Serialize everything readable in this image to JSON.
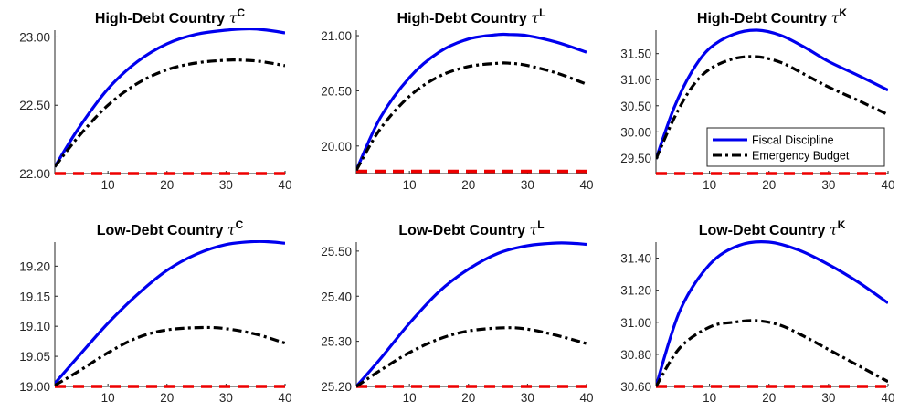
{
  "colors": {
    "fiscal_discipline": "#0000ee",
    "emergency_budget": "#000000",
    "reference": "#ee0000",
    "axis": "#262626"
  },
  "legend": {
    "placement": "inside lower-right of top-right panel",
    "entries": [
      "Fiscal Discipline",
      "Emergency Budget"
    ]
  },
  "chart_data": [
    {
      "type": "line",
      "title": "High-Debt Country",
      "title_symbol": "τ",
      "title_superscript": "C",
      "xlim": [
        1,
        40
      ],
      "ylim": [
        22.0,
        23.05
      ],
      "xticks": [
        10,
        20,
        30,
        40
      ],
      "yticks": [
        22.0,
        22.5,
        23.0
      ],
      "ytick_labels": [
        "22.00",
        "22.50",
        "23.00"
      ],
      "series": [
        {
          "name": "Fiscal Discipline",
          "style": "solid",
          "color": "#0000ee",
          "x": [
            1,
            5,
            10,
            15,
            20,
            25,
            30,
            34,
            37,
            40
          ],
          "y": [
            22.05,
            22.33,
            22.62,
            22.82,
            22.95,
            23.02,
            23.05,
            23.06,
            23.05,
            23.03
          ]
        },
        {
          "name": "Emergency Budget",
          "style": "dashdot",
          "color": "#000000",
          "x": [
            1,
            5,
            10,
            15,
            20,
            25,
            30,
            33,
            36,
            40
          ],
          "y": [
            22.05,
            22.27,
            22.5,
            22.66,
            22.76,
            22.81,
            22.83,
            22.83,
            22.82,
            22.79
          ]
        },
        {
          "name": "Reference",
          "style": "dashed",
          "color": "#ee0000",
          "x": [
            1,
            40
          ],
          "y": [
            22.0,
            22.0
          ]
        }
      ]
    },
    {
      "type": "line",
      "title": "High-Debt Country",
      "title_symbol": "τ",
      "title_superscript": "L",
      "xlim": [
        1,
        40
      ],
      "ylim": [
        19.75,
        21.05
      ],
      "xticks": [
        10,
        20,
        30,
        40
      ],
      "yticks": [
        20.0,
        20.5,
        21.0
      ],
      "ytick_labels": [
        "20.00",
        "20.50",
        "21.00"
      ],
      "series": [
        {
          "name": "Fiscal Discipline",
          "style": "solid",
          "color": "#0000ee",
          "x": [
            1,
            5,
            10,
            15,
            20,
            25,
            27,
            30,
            35,
            40
          ],
          "y": [
            19.78,
            20.25,
            20.62,
            20.85,
            20.97,
            21.01,
            21.01,
            21.0,
            20.94,
            20.85
          ]
        },
        {
          "name": "Emergency Budget",
          "style": "dashdot",
          "color": "#000000",
          "x": [
            1,
            5,
            10,
            15,
            20,
            25,
            27,
            30,
            35,
            40
          ],
          "y": [
            19.78,
            20.15,
            20.45,
            20.63,
            20.72,
            20.75,
            20.75,
            20.73,
            20.66,
            20.56
          ]
        },
        {
          "name": "Reference",
          "style": "dashed",
          "color": "#ee0000",
          "x": [
            1,
            40
          ],
          "y": [
            19.77,
            19.77
          ]
        }
      ]
    },
    {
      "type": "line",
      "title": "High-Debt Country",
      "title_symbol": "τ",
      "title_superscript": "K",
      "xlim": [
        1,
        40
      ],
      "ylim": [
        29.2,
        31.95
      ],
      "xticks": [
        10,
        20,
        30,
        40
      ],
      "yticks": [
        29.5,
        30.0,
        30.5,
        31.0,
        31.5
      ],
      "ytick_labels": [
        "29.50",
        "30.00",
        "30.50",
        "31.00",
        "31.50"
      ],
      "series": [
        {
          "name": "Fiscal Discipline",
          "style": "solid",
          "color": "#0000ee",
          "x": [
            1,
            4,
            7,
            10,
            14,
            18,
            22,
            26,
            30,
            35,
            40
          ],
          "y": [
            29.48,
            30.45,
            31.15,
            31.6,
            31.87,
            31.95,
            31.85,
            31.62,
            31.35,
            31.08,
            30.8
          ]
        },
        {
          "name": "Emergency Budget",
          "style": "dashdot",
          "color": "#000000",
          "x": [
            1,
            4,
            7,
            10,
            14,
            18,
            22,
            26,
            30,
            35,
            40
          ],
          "y": [
            29.48,
            30.25,
            30.85,
            31.2,
            31.4,
            31.44,
            31.33,
            31.1,
            30.86,
            30.6,
            30.33
          ]
        },
        {
          "name": "Reference",
          "style": "dashed",
          "color": "#ee0000",
          "x": [
            1,
            40
          ],
          "y": [
            29.2,
            29.2
          ]
        }
      ]
    },
    {
      "type": "line",
      "title": "Low-Debt Country",
      "title_symbol": "τ",
      "title_superscript": "C",
      "xlim": [
        1,
        40
      ],
      "ylim": [
        19.0,
        19.24
      ],
      "xticks": [
        10,
        20,
        30,
        40
      ],
      "yticks": [
        19.0,
        19.05,
        19.1,
        19.15,
        19.2
      ],
      "ytick_labels": [
        "19.00",
        "19.05",
        "19.10",
        "19.15",
        "19.20"
      ],
      "series": [
        {
          "name": "Fiscal Discipline",
          "style": "solid",
          "color": "#0000ee",
          "x": [
            1,
            5,
            10,
            15,
            20,
            25,
            30,
            35,
            38,
            40
          ],
          "y": [
            19.005,
            19.05,
            19.105,
            19.153,
            19.193,
            19.22,
            19.236,
            19.241,
            19.24,
            19.238
          ]
        },
        {
          "name": "Emergency Budget",
          "style": "dashdot",
          "color": "#000000",
          "x": [
            1,
            5,
            10,
            15,
            20,
            26,
            30,
            35,
            40
          ],
          "y": [
            19.002,
            19.025,
            19.056,
            19.081,
            19.094,
            19.098,
            19.096,
            19.087,
            19.072
          ]
        },
        {
          "name": "Reference",
          "style": "dashed",
          "color": "#ee0000",
          "x": [
            1,
            40
          ],
          "y": [
            19.0,
            19.0
          ]
        }
      ]
    },
    {
      "type": "line",
      "title": "Low-Debt Country",
      "title_symbol": "τ",
      "title_superscript": "L",
      "xlim": [
        1,
        40
      ],
      "ylim": [
        25.2,
        25.52
      ],
      "xticks": [
        10,
        20,
        30,
        40
      ],
      "yticks": [
        25.2,
        25.3,
        25.4,
        25.5
      ],
      "ytick_labels": [
        "25.20",
        "25.30",
        "25.40",
        "25.50"
      ],
      "series": [
        {
          "name": "Fiscal Discipline",
          "style": "solid",
          "color": "#0000ee",
          "x": [
            1,
            5,
            10,
            15,
            20,
            25,
            30,
            35,
            38,
            40
          ],
          "y": [
            25.2,
            25.26,
            25.34,
            25.41,
            25.46,
            25.495,
            25.512,
            25.518,
            25.517,
            25.515
          ]
        },
        {
          "name": "Emergency Budget",
          "style": "dashdot",
          "color": "#000000",
          "x": [
            1,
            5,
            10,
            15,
            20,
            26,
            30,
            35,
            40
          ],
          "y": [
            25.2,
            25.235,
            25.275,
            25.305,
            25.323,
            25.33,
            25.327,
            25.313,
            25.295
          ]
        },
        {
          "name": "Reference",
          "style": "dashed",
          "color": "#ee0000",
          "x": [
            1,
            40
          ],
          "y": [
            25.2,
            25.2
          ]
        }
      ]
    },
    {
      "type": "line",
      "title": "Low-Debt Country",
      "title_symbol": "τ",
      "title_superscript": "K",
      "xlim": [
        1,
        40
      ],
      "ylim": [
        30.6,
        31.5
      ],
      "xticks": [
        10,
        20,
        30,
        40
      ],
      "yticks": [
        30.6,
        30.8,
        31.0,
        31.2,
        31.4
      ],
      "ytick_labels": [
        "30.60",
        "30.80",
        "31.00",
        "31.20",
        "31.40"
      ],
      "series": [
        {
          "name": "Fiscal Discipline",
          "style": "solid",
          "color": "#0000ee",
          "x": [
            1,
            5,
            10,
            15,
            20,
            25,
            30,
            35,
            40
          ],
          "y": [
            30.6,
            31.07,
            31.36,
            31.48,
            31.5,
            31.45,
            31.36,
            31.25,
            31.12
          ]
        },
        {
          "name": "Emergency Budget",
          "style": "dashdot",
          "color": "#000000",
          "x": [
            1,
            5,
            10,
            14,
            18,
            22,
            26,
            30,
            35,
            40
          ],
          "y": [
            30.6,
            30.84,
            30.97,
            31.0,
            31.01,
            30.98,
            30.91,
            30.83,
            30.73,
            30.63
          ]
        },
        {
          "name": "Reference",
          "style": "dashed",
          "color": "#ee0000",
          "x": [
            1,
            40
          ],
          "y": [
            30.6,
            30.6
          ]
        }
      ]
    }
  ]
}
